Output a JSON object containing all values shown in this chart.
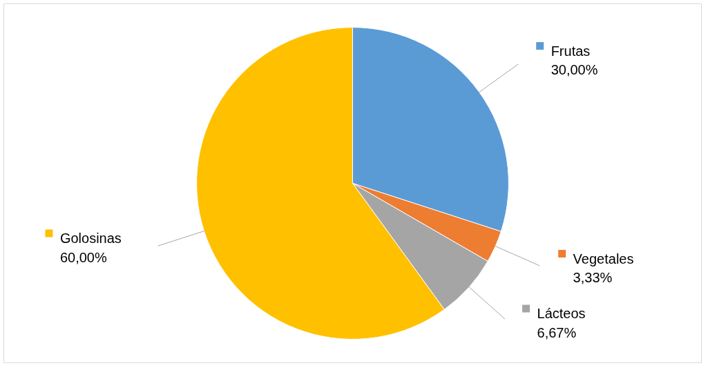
{
  "chart_data": {
    "type": "pie",
    "categories": [
      "Frutas",
      "Vegetales",
      "Lácteos",
      "Golosinas"
    ],
    "values": [
      30,
      3.33,
      6.67,
      60
    ],
    "value_labels": [
      "30,00%",
      "3,33%",
      "6,67%",
      "60,00%"
    ],
    "colors": [
      "#5b9bd5",
      "#ed7d31",
      "#a5a5a5",
      "#ffc000"
    ],
    "legend": "right"
  }
}
